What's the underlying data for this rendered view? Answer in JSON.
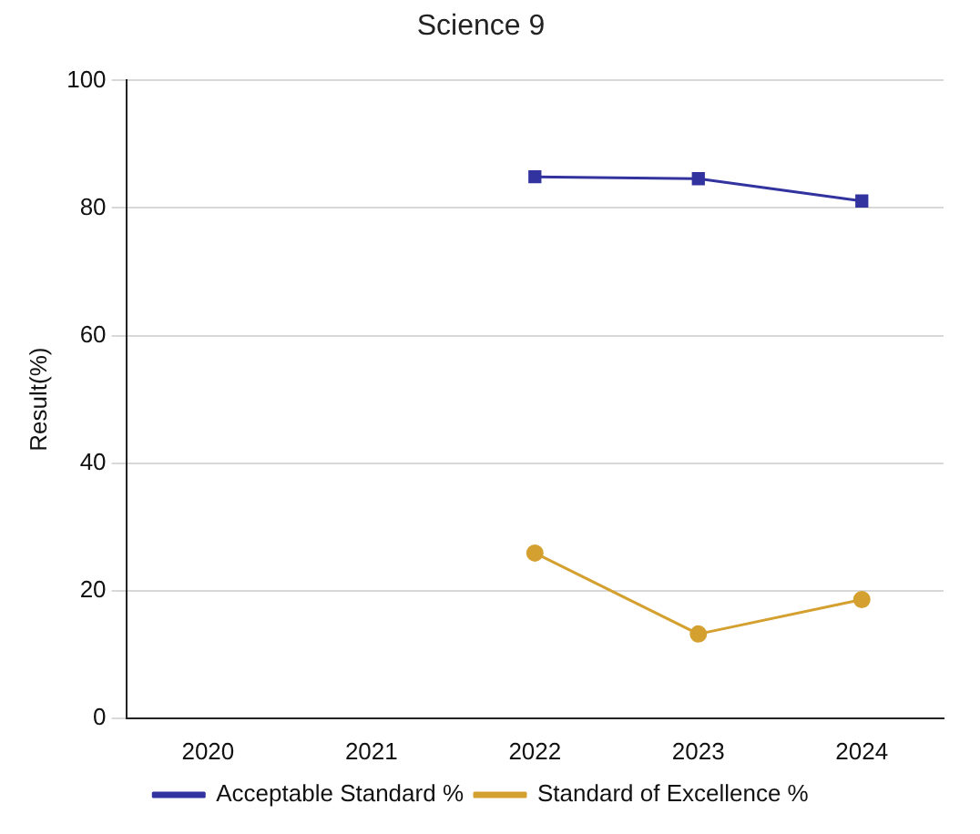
{
  "chart_data": {
    "type": "line",
    "title": "Science 9",
    "ylabel": "Result(%)",
    "categories": [
      "2020",
      "2021",
      "2022",
      "2023",
      "2024"
    ],
    "series": [
      {
        "name": "Acceptable Standard %",
        "color": "#3333a0",
        "marker": "square",
        "values": [
          null,
          null,
          84.9,
          84.6,
          81.1
        ]
      },
      {
        "name": "Standard of Excellence %",
        "color": "#d4a030",
        "marker": "circle",
        "values": [
          null,
          null,
          25.9,
          13.2,
          18.6
        ]
      }
    ],
    "ylim": [
      0,
      100
    ],
    "yticks": [
      0,
      20,
      40,
      60,
      80,
      100
    ],
    "grid": "y",
    "legend": "bottom",
    "line_style": "solid"
  }
}
